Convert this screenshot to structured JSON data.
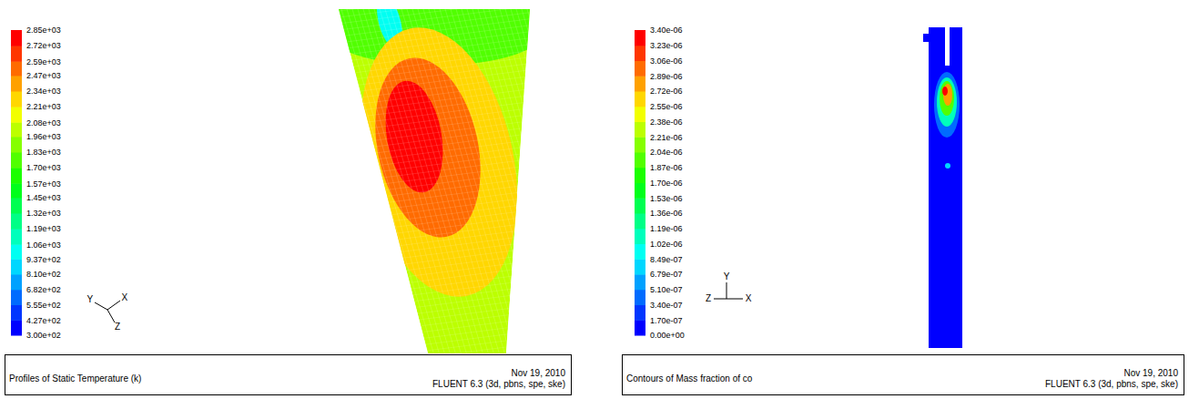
{
  "chart_data": [
    {
      "type": "contour",
      "title": "Profiles of Static Temperature (k)",
      "date": "Nov 19, 2010",
      "software": "FLUENT 6.3 (3d, pbns, spe, ske)",
      "axis_labels": [
        "Y",
        "X",
        "Z"
      ],
      "colorbar": {
        "range": [
          300,
          2850
        ],
        "ticks": [
          {
            "value": 300,
            "label": "3.00e+02"
          },
          {
            "value": 427,
            "label": "4.27e+02"
          },
          {
            "value": 555,
            "label": "5.55e+02"
          },
          {
            "value": 682,
            "label": "6.82e+02"
          },
          {
            "value": 810,
            "label": "8.10e+02"
          },
          {
            "value": 937,
            "label": "9.37e+02"
          },
          {
            "value": 1060,
            "label": "1.06e+03"
          },
          {
            "value": 1190,
            "label": "1.19e+03"
          },
          {
            "value": 1320,
            "label": "1.32e+03"
          },
          {
            "value": 1450,
            "label": "1.45e+03"
          },
          {
            "value": 1570,
            "label": "1.57e+03"
          },
          {
            "value": 1700,
            "label": "1.70e+03"
          },
          {
            "value": 1830,
            "label": "1.83e+03"
          },
          {
            "value": 1960,
            "label": "1.96e+03"
          },
          {
            "value": 2080,
            "label": "2.08e+03"
          },
          {
            "value": 2210,
            "label": "2.21e+03"
          },
          {
            "value": 2340,
            "label": "2.34e+03"
          },
          {
            "value": 2470,
            "label": "2.47e+03"
          },
          {
            "value": 2590,
            "label": "2.59e+03"
          },
          {
            "value": 2720,
            "label": "2.72e+03"
          },
          {
            "value": 2850,
            "label": "2.85e+03"
          }
        ]
      },
      "field": [
        1960,
        1700,
        940,
        2210,
        2470,
        2720,
        2850
      ]
    },
    {
      "type": "contour",
      "title": "Contours of Mass fraction of co",
      "date": "Nov 19, 2010",
      "software": "FLUENT 6.3 (3d, pbns, spe, ske)",
      "axis_labels": [
        "Y",
        "Z",
        "X"
      ],
      "colorbar": {
        "range": [
          0,
          3.4e-06
        ],
        "ticks": [
          {
            "value": 0,
            "label": "0.00e+00"
          },
          {
            "value": 1.7e-07,
            "label": "1.70e-07"
          },
          {
            "value": 3.4e-07,
            "label": "3.40e-07"
          },
          {
            "value": 5.1e-07,
            "label": "5.10e-07"
          },
          {
            "value": 6.79e-07,
            "label": "6.79e-07"
          },
          {
            "value": 8.49e-07,
            "label": "8.49e-07"
          },
          {
            "value": 1.02e-06,
            "label": "1.02e-06"
          },
          {
            "value": 1.19e-06,
            "label": "1.19e-06"
          },
          {
            "value": 1.36e-06,
            "label": "1.36e-06"
          },
          {
            "value": 1.53e-06,
            "label": "1.53e-06"
          },
          {
            "value": 1.7e-06,
            "label": "1.70e-06"
          },
          {
            "value": 1.87e-06,
            "label": "1.87e-06"
          },
          {
            "value": 2.04e-06,
            "label": "2.04e-06"
          },
          {
            "value": 2.21e-06,
            "label": "2.21e-06"
          },
          {
            "value": 2.38e-06,
            "label": "2.38e-06"
          },
          {
            "value": 2.55e-06,
            "label": "2.55e-06"
          },
          {
            "value": 2.72e-06,
            "label": "2.72e-06"
          },
          {
            "value": 2.89e-06,
            "label": "2.89e-06"
          },
          {
            "value": 3.06e-06,
            "label": "3.06e-06"
          },
          {
            "value": 3.23e-06,
            "label": "3.23e-06"
          },
          {
            "value": 3.4e-06,
            "label": "3.40e-06"
          }
        ]
      },
      "field": [
        0,
        3.4e-07,
        6.79e-07,
        1.02e-06,
        1.87e-06,
        2.72e-06,
        3.23e-06
      ]
    }
  ]
}
